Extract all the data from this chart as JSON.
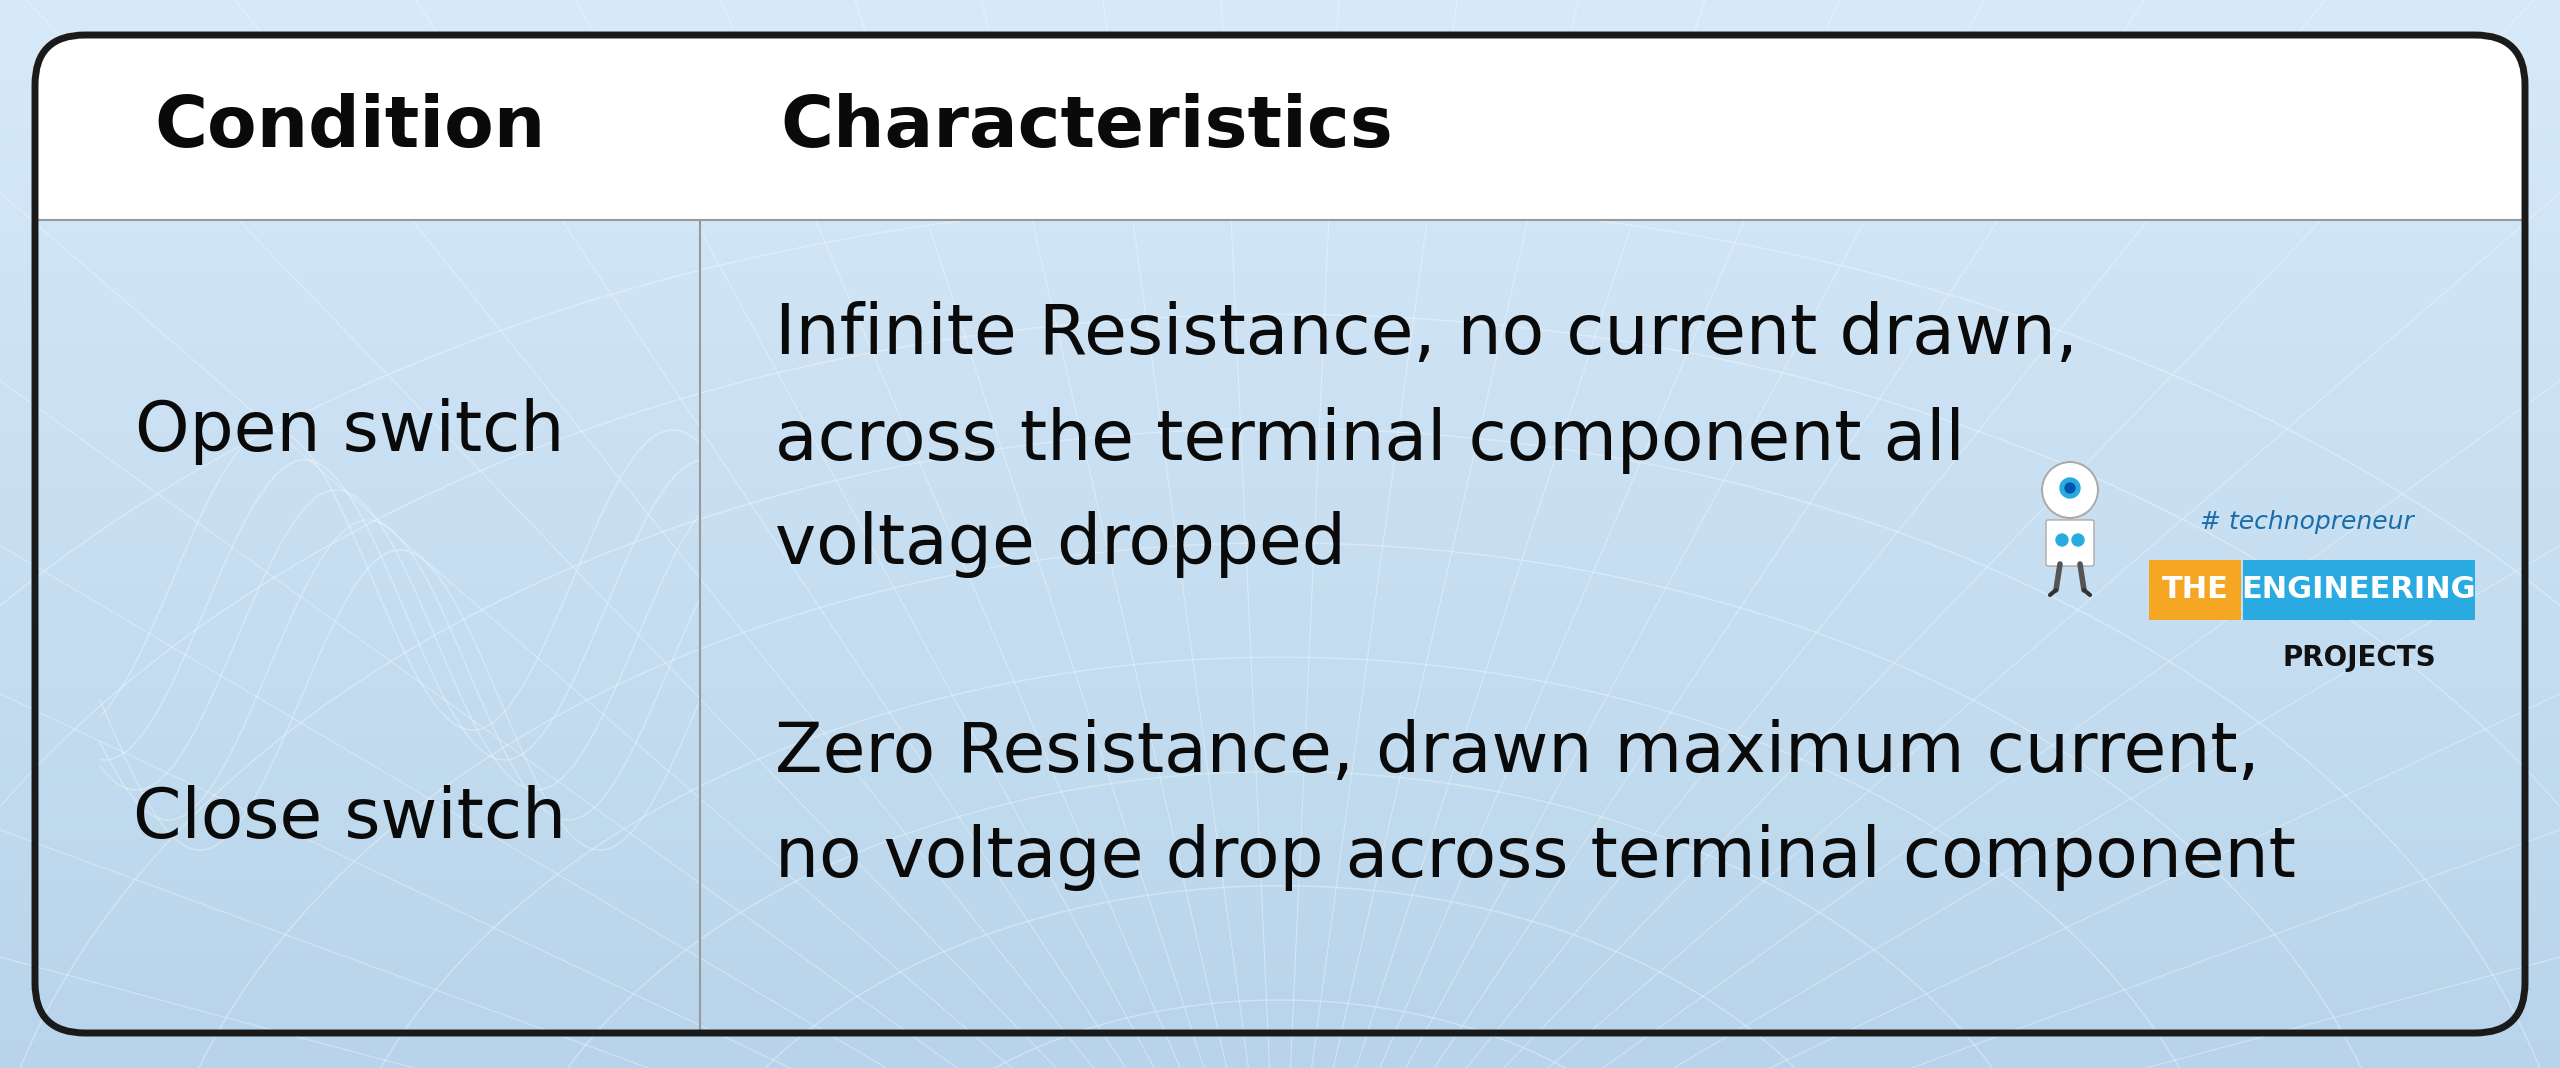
{
  "header_condition": "Condition",
  "header_characteristics": "Characteristics",
  "row1_condition": "Open switch",
  "row1_char_line1": "Infinite Resistance, no current drawn,",
  "row1_char_line2": "across the terminal component all",
  "row1_char_line3": "voltage dropped",
  "row2_condition": "Close switch",
  "row2_char_line1": "Zero Resistance, drawn maximum current,",
  "row2_char_line2": "no voltage drop across terminal component",
  "bg_top": "#d6e9f8",
  "bg_bottom": "#b8d4ea",
  "header_bg": "#ffffff",
  "border_color": "#1a1a1a",
  "header_text_color": "#0a0a0a",
  "body_text_color": "#0a0a0a",
  "logo_the_color": "#f5a623",
  "logo_eng_color": "#29abe2",
  "logo_text_the": "THE",
  "logo_text_eng": "ENGINEERING",
  "logo_text_proj": "PROJECTS",
  "logo_tag": "# technopreneur"
}
